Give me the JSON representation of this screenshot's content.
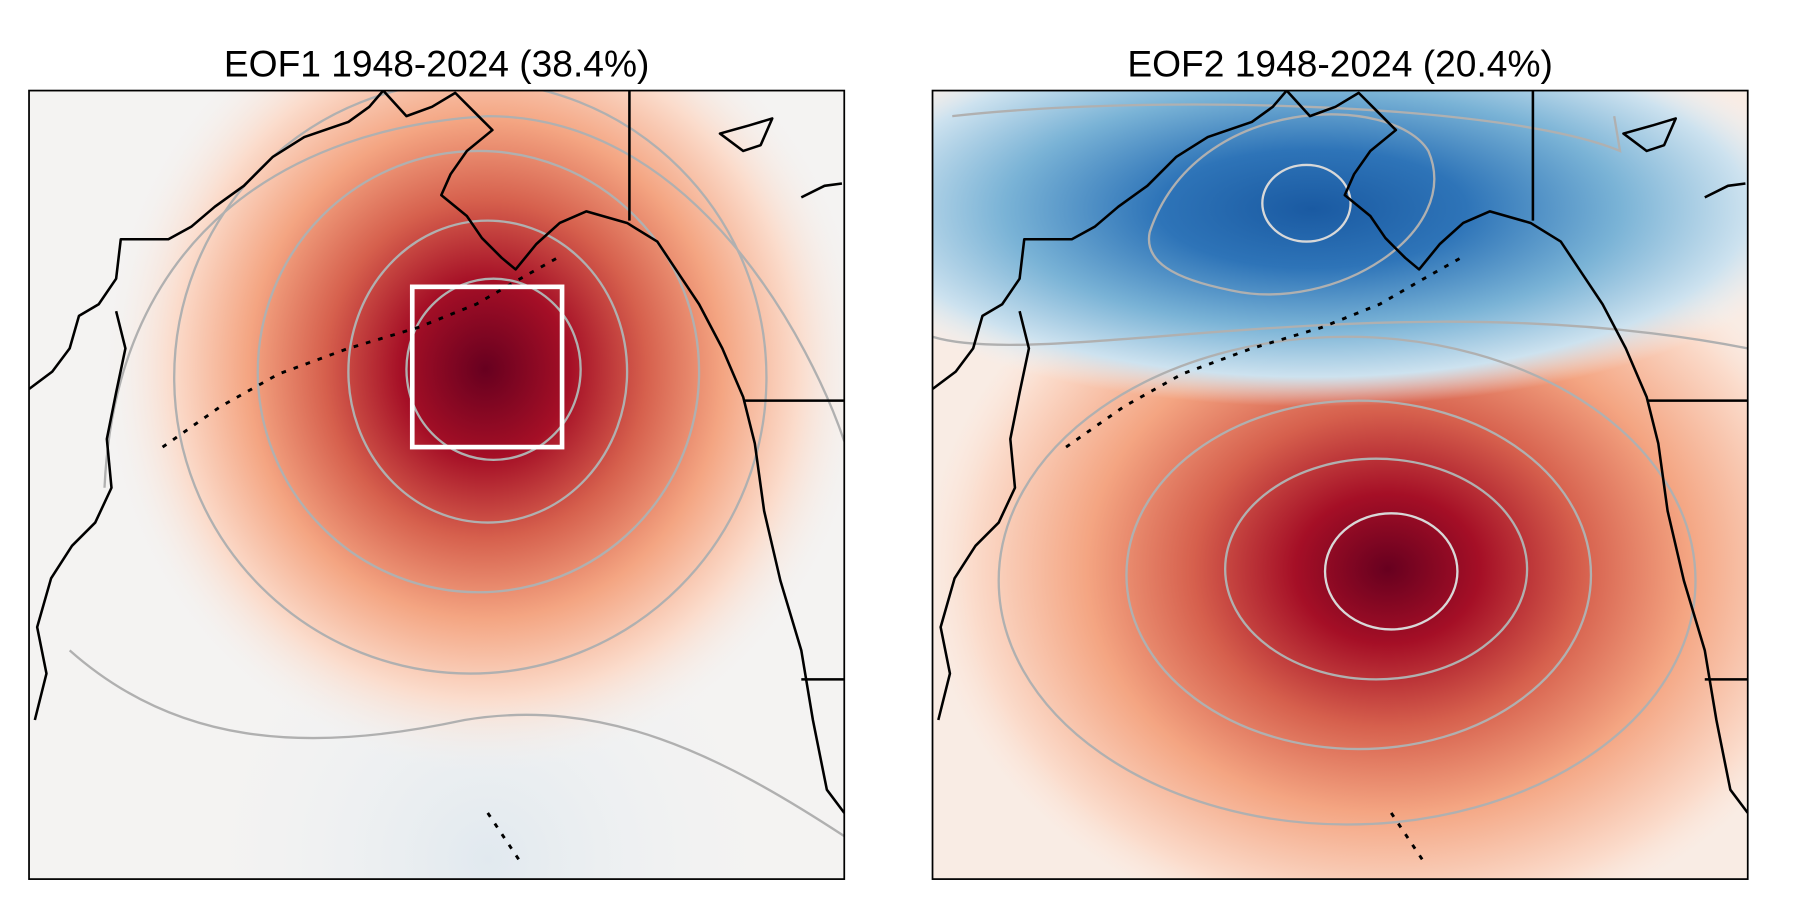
{
  "panels": [
    {
      "title": "EOF1 1948-2024 (38.4%)"
    },
    {
      "title": "EOF2 1948-2024 (20.4%)"
    }
  ]
}
